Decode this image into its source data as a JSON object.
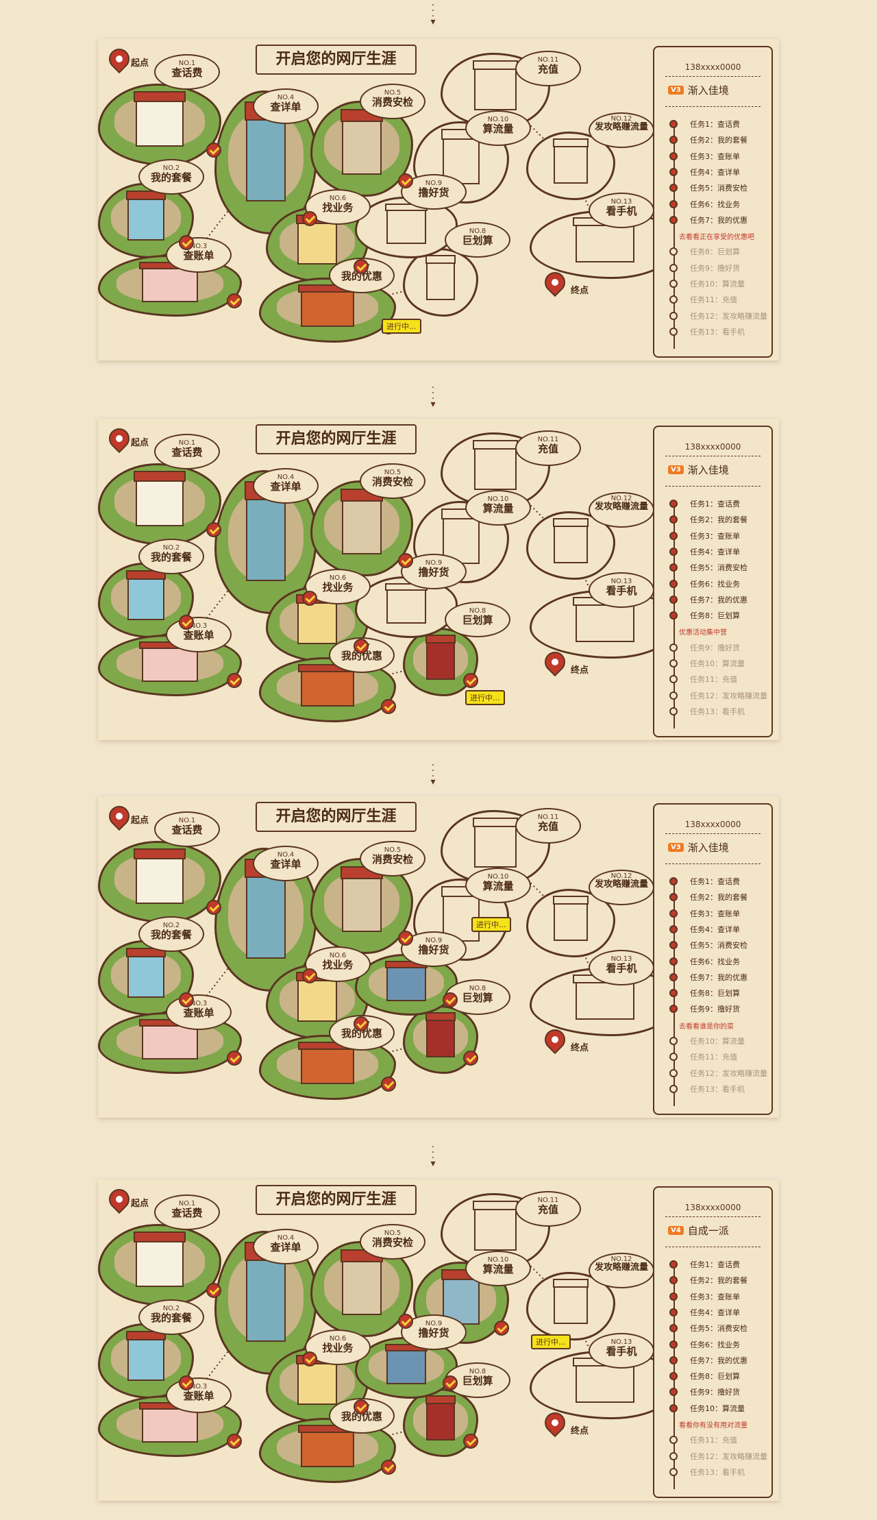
{
  "title": "开启您的网厅生涯",
  "start_label": "起点",
  "end_label": "终点",
  "in_progress_label": "进行中...",
  "stations": [
    {
      "no": "NO.1",
      "name": "查话费"
    },
    {
      "no": "NO.2",
      "name": "我的套餐"
    },
    {
      "no": "NO.3",
      "name": "查账单"
    },
    {
      "no": "NO.4",
      "name": "查详单"
    },
    {
      "no": "NO.5",
      "name": "消费安检"
    },
    {
      "no": "NO.6",
      "name": "找业务"
    },
    {
      "no": "NO.7",
      "name": "我的优惠"
    },
    {
      "no": "NO.8",
      "name": "巨划算"
    },
    {
      "no": "NO.9",
      "name": "撸好货"
    },
    {
      "no": "NO.10",
      "name": "算流量"
    },
    {
      "no": "NO.11",
      "name": "充值"
    },
    {
      "no": "NO.12",
      "name": "发攻略赚流量"
    },
    {
      "no": "NO.13",
      "name": "看手机"
    }
  ],
  "tasks": [
    "任务1：查话费",
    "任务2：我的套餐",
    "任务3：查账单",
    "任务4：查详单",
    "任务5：消费安检",
    "任务6：找业务",
    "任务7：我的优惠",
    "任务8：巨划算",
    "任务9：撸好货",
    "任务10：算流量",
    "任务11：充值",
    "任务12：发攻略赚流量",
    "任务13：看手机"
  ],
  "panels": [
    {
      "phone": "138xxxx0000",
      "level": "V3",
      "level_title": "渐入佳境",
      "completed": 7,
      "hint": "去看看正在享受的优惠吧"
    },
    {
      "phone": "138xxxx0000",
      "level": "V3",
      "level_title": "渐入佳境",
      "completed": 8,
      "hint": "优惠活动集中营"
    },
    {
      "phone": "138xxxx0000",
      "level": "V3",
      "level_title": "渐入佳境",
      "completed": 9,
      "hint": "去看看谁是你的菜"
    },
    {
      "phone": "138xxxx0000",
      "level": "V4",
      "level_title": "自成一派",
      "completed": 10,
      "hint": "看看你有没有用对流量"
    }
  ],
  "colors": {
    "accent": "#c0392b",
    "outline": "#5a3520",
    "grass": "#7fa84a",
    "badge": "#f6e21a",
    "level_icon": "#f07a22"
  }
}
